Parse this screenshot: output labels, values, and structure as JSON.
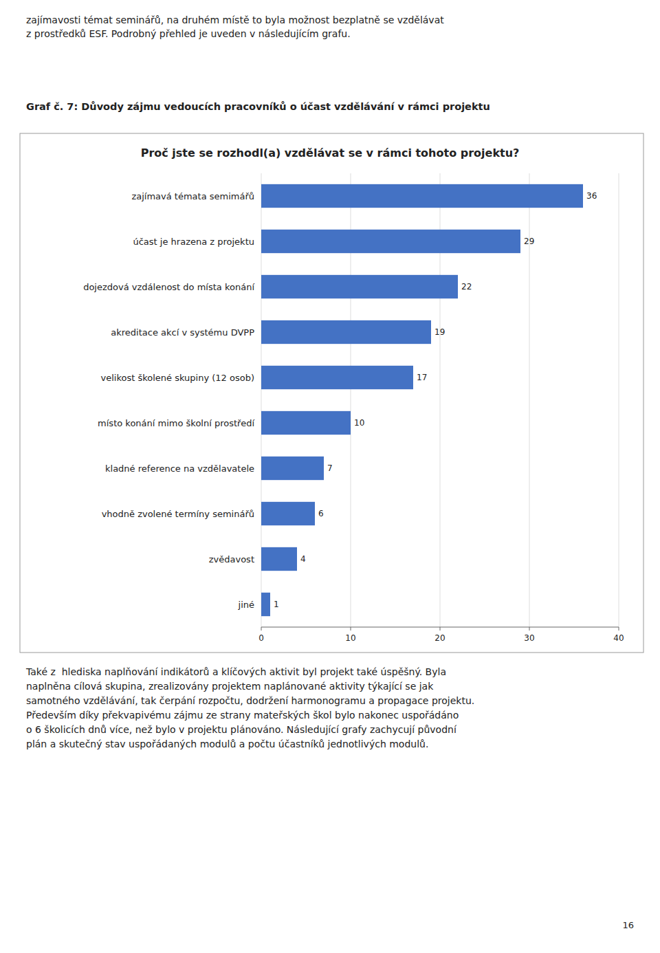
{
  "top_text": "zajímavosti témat seminářů, na druhém místě to byla možnost bezplatně se vzdělávat\nz prostředků ESF. Podrobný přehled je uveden v následujícím grafu.",
  "heading": "Graf č. 7: Důvody zájmu vedoucích pracovníků o účast vzdělávání v rámci projektu",
  "bottom_text": "Také z  hlediska naplňování indikátorů a klíčových aktivit byl projekt také úspěšný. Byla\nnaplněna cílová skupina, zrealizovány projektem naplánované aktivity týkající se jak\nsamotného vzdělávání, tak čerpání rozpočtu, dodržení harmonogramu a propagace projektu.\nPředevším díky překvapivému zájmu ze strany mateřských škol bylo nakonec uspořádáno\no 6 školicích dnů více, než bylo v projektu plánováno. Následující grafy zachycují původní\nplán a skutečný stav uspořádaných modulů a počtu účastníků jednotlivých modulů.",
  "page_number": "16",
  "chart_data": {
    "type": "bar",
    "orientation": "horizontal",
    "title": "Proč jste se rozhodl(a) vzdělávat se v rámci tohoto projektu?",
    "categories": [
      "zajímavá témata semimářů",
      "účast je hrazena z projektu",
      "dojezdová vzdálenost do místa konání",
      "akreditace akcí v systému DVPP",
      "velikost školené skupiny (12 osob)",
      "místo konání mimo školní prostředí",
      "kladné reference na vzdělavatele",
      "vhodně zvolené termíny seminářů",
      "zvědavost",
      "jiné"
    ],
    "values": [
      36,
      29,
      22,
      19,
      17,
      10,
      7,
      6,
      4,
      1
    ],
    "color": "#4472C4",
    "xlim": [
      0,
      40
    ],
    "xticks": [
      0,
      10,
      20,
      30,
      40
    ],
    "grid": true,
    "data_labels": true
  }
}
